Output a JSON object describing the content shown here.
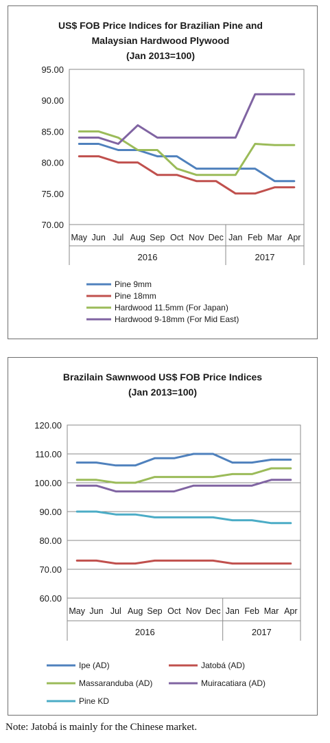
{
  "chart_data": [
    {
      "type": "line",
      "title": "US$ FOB Price Indices for Brazilian Pine and Malaysian Hardwood Plywood",
      "title_lines": [
        "US$ FOB Price Indices for Brazilian Pine and",
        "Malaysian Hardwood Plywood",
        "(Jan 2013=100)"
      ],
      "subtitle": "(Jan 2013=100)",
      "categories": [
        "May",
        "Jun",
        "Jul",
        "Aug",
        "Sep",
        "Oct",
        "Nov",
        "Dec",
        "Jan",
        "Feb",
        "Mar",
        "Apr"
      ],
      "year_groups": [
        {
          "label": "2016",
          "span": 8
        },
        {
          "label": "2017",
          "span": 4
        }
      ],
      "y_ticks": [
        "95.00",
        "90.00",
        "85.00",
        "80.00",
        "75.00",
        "70.00"
      ],
      "ylim": [
        70,
        95
      ],
      "grid": false,
      "legend_position": "bottom",
      "series": [
        {
          "name": "Pine 9mm",
          "color": "#4f81bd",
          "values": [
            83,
            83,
            82,
            82,
            81,
            81,
            79,
            79,
            79,
            79,
            77,
            77
          ]
        },
        {
          "name": "Pine 18mm",
          "color": "#c0504d",
          "values": [
            81,
            81,
            80,
            80,
            78,
            78,
            77,
            77,
            75,
            75,
            76,
            76
          ]
        },
        {
          "name": "Hardwood 11.5mm (For Japan)",
          "color": "#9bbb59",
          "values": [
            85,
            85,
            84,
            82,
            82,
            79,
            78,
            78,
            78,
            83,
            82.8,
            82.8
          ]
        },
        {
          "name": "Hardwood 9-18mm (For Mid East)",
          "color": "#8064a2",
          "values": [
            84,
            84,
            83,
            86,
            84,
            84,
            84,
            84,
            84,
            91,
            91,
            91
          ]
        }
      ]
    },
    {
      "type": "line",
      "title": "Brazilain Sawnwood US$ FOB Price Indices",
      "title_lines": [
        "Brazilain Sawnwood US$ FOB Price Indices",
        "(Jan 2013=100)"
      ],
      "subtitle": "(Jan 2013=100)",
      "categories": [
        "May",
        "Jun",
        "Jul",
        "Aug",
        "Sep",
        "Oct",
        "Nov",
        "Dec",
        "Jan",
        "Feb",
        "Mar",
        "Apr"
      ],
      "year_groups": [
        {
          "label": "2016",
          "span": 8
        },
        {
          "label": "2017",
          "span": 4
        }
      ],
      "y_ticks": [
        "120.00",
        "110.00",
        "100.00",
        "90.00",
        "80.00",
        "70.00",
        "60.00"
      ],
      "ylim": [
        60,
        120
      ],
      "grid": true,
      "legend_position": "bottom",
      "series": [
        {
          "name": "Ipe (AD)",
          "color": "#4f81bd",
          "values": [
            107,
            107,
            106,
            106,
            108.5,
            108.5,
            110,
            110,
            107,
            107,
            108,
            108
          ]
        },
        {
          "name": "Jatobá (AD)",
          "color": "#c0504d",
          "values": [
            73,
            73,
            72,
            72,
            73,
            73,
            73,
            73,
            72,
            72,
            72,
            72
          ]
        },
        {
          "name": "Massaranduba (AD)",
          "color": "#9bbb59",
          "values": [
            101,
            101,
            100,
            100,
            102,
            102,
            102,
            102,
            103,
            103,
            105,
            105
          ]
        },
        {
          "name": "Muiracatiara (AD)",
          "color": "#8064a2",
          "values": [
            99,
            99,
            97,
            97,
            97,
            97,
            99,
            99,
            99,
            99,
            101,
            101
          ]
        },
        {
          "name": "Pine KD",
          "color": "#4bacc6",
          "values": [
            90,
            90,
            89,
            89,
            88,
            88,
            88,
            88,
            87,
            87,
            86,
            86
          ]
        }
      ]
    }
  ],
  "note": "Note: Jatobá is mainly for the Chinese market."
}
